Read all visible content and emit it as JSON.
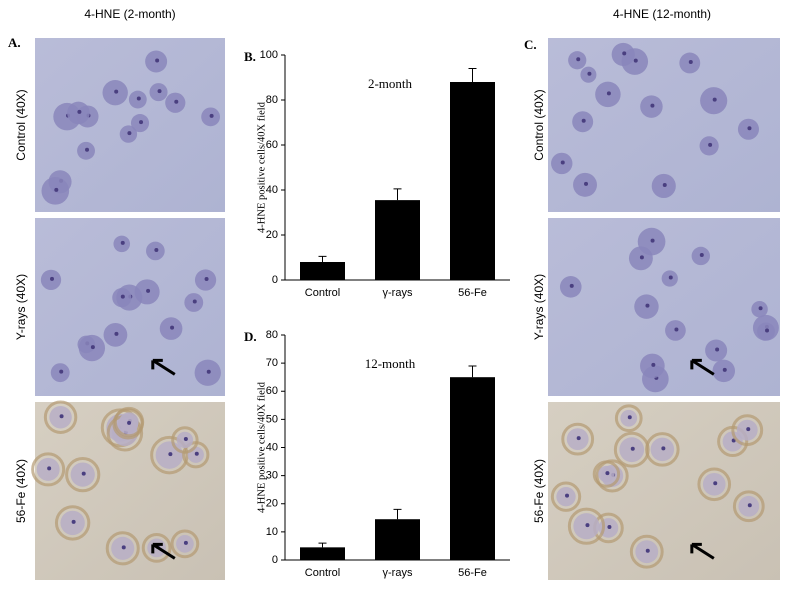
{
  "figure": {
    "left": {
      "title": "4-HNE (2-month)",
      "panel": "A.",
      "rows": [
        "Control (40X)",
        "Y-rays (40X)",
        "56-Fe (40X)"
      ]
    },
    "right": {
      "title": "4-HNE (12-month)",
      "panel": "C.",
      "rows": [
        "Control (40X)",
        "Y-rays (40X)",
        "56-Fe (40X)"
      ]
    }
  },
  "chart_data": [
    {
      "type": "bar",
      "panel": "B.",
      "annotation": "2-month",
      "y_label": "4-HNE positive cells/40X field",
      "categories": [
        "Control",
        "γ-rays",
        "56-Fe"
      ],
      "values": [
        8,
        35.5,
        88
      ],
      "errors": [
        2.5,
        5,
        6
      ],
      "color": "#000000",
      "ylim": [
        0,
        100
      ],
      "yticks": [
        0,
        20,
        40,
        60,
        80,
        100
      ]
    },
    {
      "type": "bar",
      "panel": "D.",
      "annotation": "12-month",
      "y_label": "4-HNE positive cells/40X field",
      "categories": [
        "Control",
        "γ-rays",
        "56-Fe"
      ],
      "values": [
        4.5,
        14.5,
        65
      ],
      "errors": [
        1.5,
        3.5,
        4
      ],
      "color": "#000000",
      "ylim": [
        0,
        80
      ],
      "yticks": [
        0,
        10,
        20,
        30,
        40,
        50,
        60,
        70,
        80
      ]
    }
  ]
}
